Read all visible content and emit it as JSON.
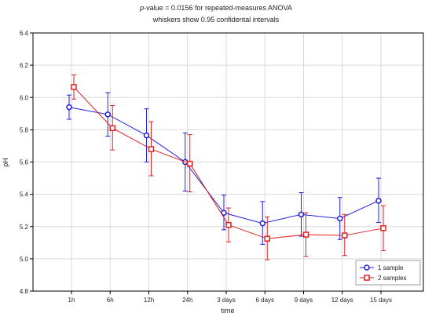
{
  "chart_data": {
    "type": "line",
    "title_italic": "p",
    "title": "-value = 0.0156 for repeated-measures ANOVA",
    "subtitle": "whiskers show 0.95 confidental intervals",
    "xlabel": "time",
    "ylabel": "pH",
    "ylim": [
      4.8,
      6.4
    ],
    "yticks": [
      "4.8",
      "5.0",
      "5.2",
      "5.4",
      "5.6",
      "5.8",
      "6.0",
      "6.2",
      "6.4"
    ],
    "grid": true,
    "legend_position": "bottom-right",
    "categories": [
      "1h",
      "6h",
      "12h",
      "24h",
      "3 days",
      "6 days",
      "9 days",
      "12 days",
      "15 days"
    ],
    "series": [
      {
        "name": "1 sample",
        "color": "#1f1fe0",
        "marker": "circle",
        "values": [
          5.94,
          5.895,
          5.765,
          5.6,
          5.285,
          5.22,
          5.275,
          5.25,
          5.36
        ],
        "ci_low": [
          5.865,
          5.76,
          5.6,
          5.42,
          5.18,
          5.09,
          5.14,
          5.12,
          5.225
        ],
        "ci_high": [
          6.015,
          6.03,
          5.93,
          5.78,
          5.395,
          5.355,
          5.41,
          5.38,
          5.5
        ]
      },
      {
        "name": "2 samples",
        "color": "#e02020",
        "marker": "square",
        "values": [
          6.065,
          5.81,
          5.68,
          5.59,
          5.21,
          5.125,
          5.15,
          5.145,
          5.19
        ],
        "ci_low": [
          5.99,
          5.675,
          5.515,
          5.415,
          5.105,
          4.995,
          5.015,
          5.02,
          5.05
        ],
        "ci_high": [
          6.14,
          5.95,
          5.85,
          5.77,
          5.315,
          5.26,
          5.285,
          5.275,
          5.33
        ]
      }
    ]
  }
}
